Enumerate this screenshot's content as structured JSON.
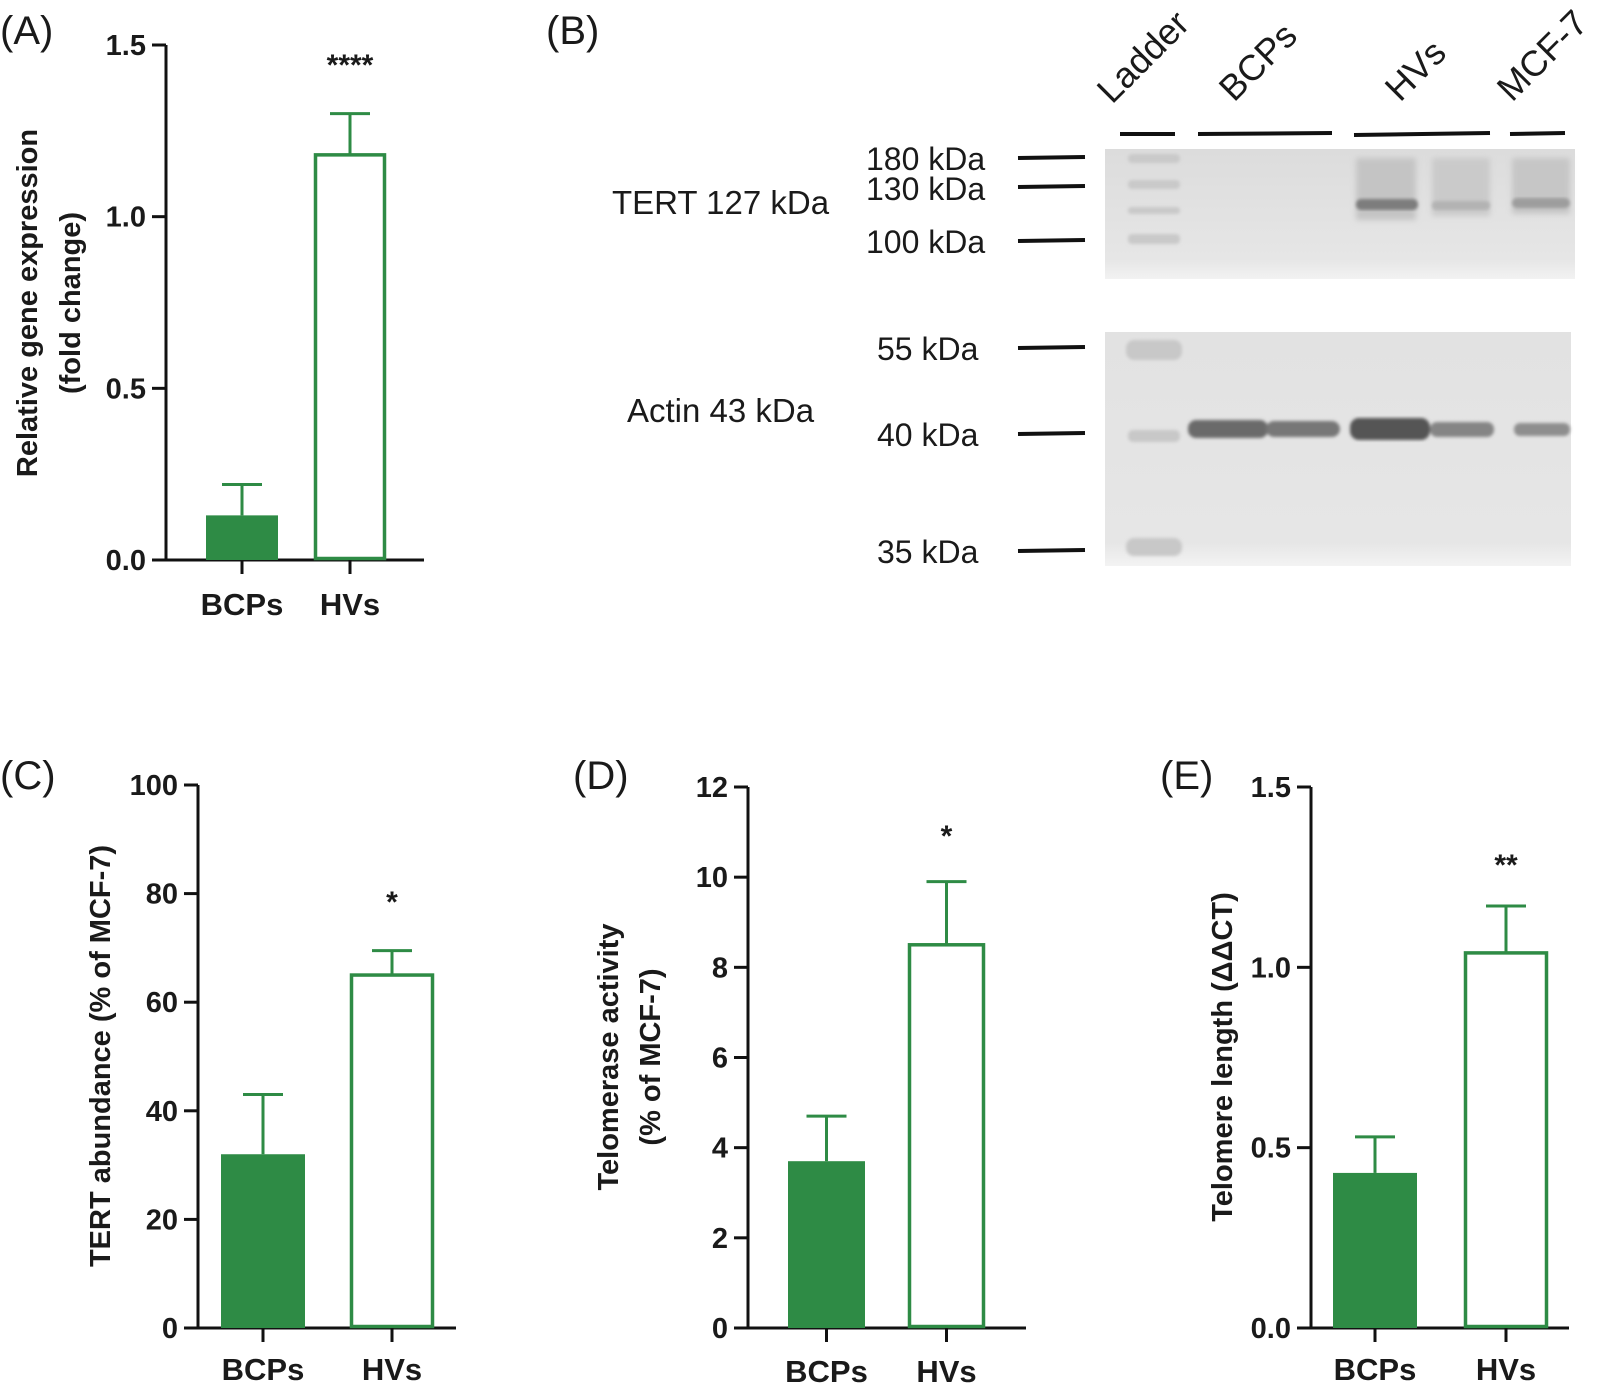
{
  "colors": {
    "green": "#2e8b45",
    "axis": "#111111",
    "text": "#1a1a1a"
  },
  "chart_data": [
    {
      "panel": "(A)",
      "type": "bar",
      "categories": [
        "BCPs",
        "HVs"
      ],
      "values": [
        0.13,
        1.18
      ],
      "errors": [
        0.09,
        0.12
      ],
      "fills": [
        "solid",
        "hollow"
      ],
      "ylabel_lines": [
        "Relative gene expression",
        "(fold change)"
      ],
      "ylim": [
        0,
        1.5
      ],
      "yticks": [
        "0.0",
        "0.5",
        "1.0",
        "1.5"
      ],
      "significance": "****"
    },
    {
      "panel": "(C)",
      "type": "bar",
      "categories": [
        "BCPs",
        "HVs"
      ],
      "values": [
        32,
        65
      ],
      "errors": [
        11,
        4.5
      ],
      "fills": [
        "solid",
        "hollow"
      ],
      "ylabel_lines": [
        "TERT abundance (% of MCF-7)"
      ],
      "ylim": [
        0,
        100
      ],
      "yticks": [
        "0",
        "20",
        "40",
        "60",
        "80",
        "100"
      ],
      "significance": "*"
    },
    {
      "panel": "(D)",
      "type": "bar",
      "categories": [
        "BCPs",
        "HVs"
      ],
      "values": [
        3.7,
        8.5
      ],
      "errors": [
        1.0,
        1.4
      ],
      "fills": [
        "solid",
        "hollow"
      ],
      "ylabel_lines": [
        "Telomerase activity",
        "(% of MCF-7)"
      ],
      "ylim": [
        0,
        12
      ],
      "yticks": [
        "0",
        "2",
        "4",
        "6",
        "8",
        "10",
        "12"
      ],
      "significance": "*"
    },
    {
      "panel": "(E)",
      "type": "bar",
      "categories": [
        "BCPs",
        "HVs"
      ],
      "values": [
        0.43,
        1.04
      ],
      "errors": [
        0.1,
        0.13
      ],
      "fills": [
        "solid",
        "hollow"
      ],
      "ylabel_lines": [
        "Telomere length (ΔΔCT)"
      ],
      "ylim": [
        0,
        1.5
      ],
      "yticks": [
        "0.0",
        "0.5",
        "1.0",
        "1.5"
      ],
      "significance": "**"
    }
  ],
  "blot": {
    "panel": "(B)",
    "lane_labels": [
      "Ladder",
      "BCPs",
      "HVs",
      "MCF-7"
    ],
    "tert_label": "TERT 127 kDa",
    "actin_label": "Actin 43 kDa",
    "tert_markers": [
      "180 kDa",
      "130 kDa",
      "100 kDa"
    ],
    "actin_markers": [
      "55 kDa",
      "40 kDa",
      "35 kDa"
    ]
  }
}
